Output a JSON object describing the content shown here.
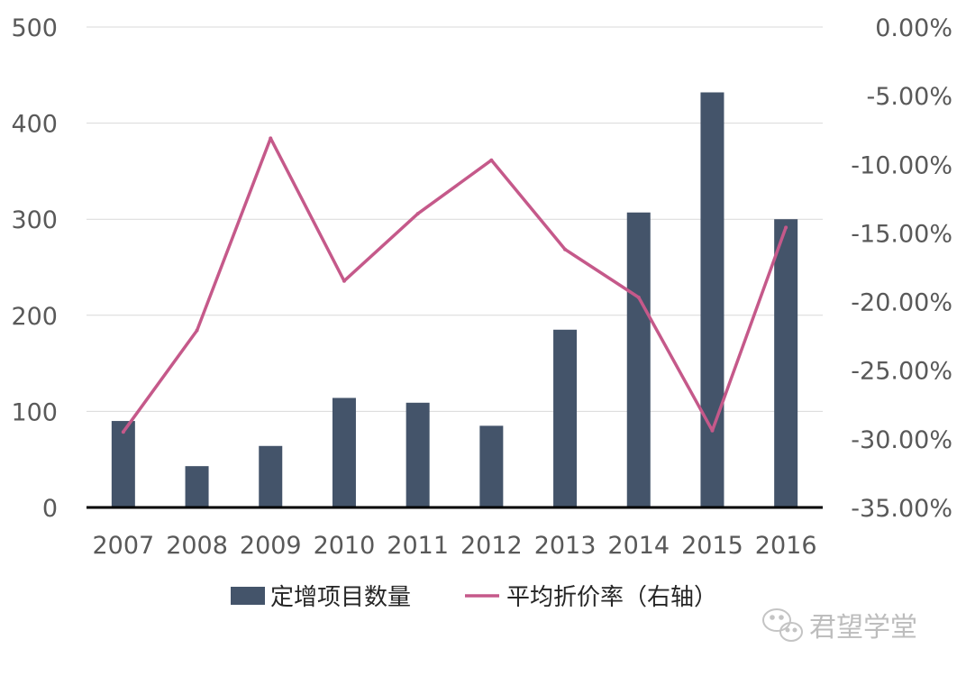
{
  "chart_data": {
    "type": "bar",
    "categories": [
      "2007",
      "2008",
      "2009",
      "2010",
      "2011",
      "2012",
      "2013",
      "2014",
      "2015",
      "2016"
    ],
    "series": [
      {
        "name": "定增项目数量",
        "type": "bar",
        "axis": "left",
        "color": "#44546a",
        "values": [
          90,
          43,
          64,
          114,
          109,
          85,
          185,
          307,
          432,
          300
        ]
      },
      {
        "name": "平均折价率（右轴）",
        "type": "line",
        "axis": "right",
        "color": "#c5598a",
        "values": [
          -29.5,
          -22.1,
          -8.1,
          -18.5,
          -13.6,
          -9.7,
          -16.2,
          -19.7,
          -29.4,
          -14.6
        ]
      }
    ],
    "y_left": {
      "lim": [
        0,
        500
      ],
      "ticks": [
        "0",
        "100",
        "200",
        "300",
        "400",
        "500"
      ]
    },
    "y_right": {
      "lim": [
        -35,
        0
      ],
      "ticks": [
        "-35.00%",
        "-30.00%",
        "-25.00%",
        "-20.00%",
        "-15.00%",
        "-10.00%",
        "-5.00%",
        "0.00%"
      ]
    },
    "grid": true,
    "legend_position": "bottom"
  },
  "watermark": {
    "text": "君望学堂",
    "icon": "wechat-icon"
  }
}
